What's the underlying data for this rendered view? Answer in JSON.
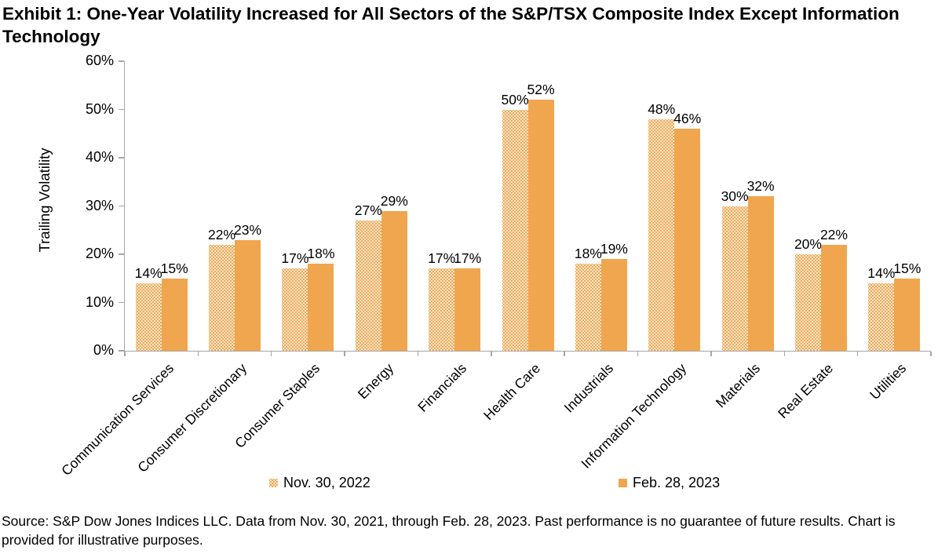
{
  "title": "Exhibit 1: One-Year Volatility Increased for All Sectors of the S&P/TSX Composite Index Except Information Technology",
  "source": "Source: S&P Dow Jones Indices LLC. Data from Nov. 30, 2021, through Feb. 28, 2023. Past performance is no guarantee of future results. Chart is provided for illustrative purposes.",
  "colors": {
    "bar_orange": "#F0A64F",
    "axis_gray": "#A6A6A6",
    "text_black": "#000000"
  },
  "chart_data": {
    "type": "bar",
    "title": "Exhibit 1: One-Year Volatility Increased for All Sectors of the S&P/TSX Composite Index Except Information Technology",
    "xlabel": "",
    "ylabel": "Trailing Volatility",
    "ylim": [
      0,
      60
    ],
    "ytick_step": 10,
    "ytick_labels": [
      "0%",
      "10%",
      "20%",
      "30%",
      "40%",
      "50%",
      "60%"
    ],
    "grid": false,
    "data_labels": true,
    "data_label_format": "percent",
    "legend_position": "bottom",
    "categories": [
      "Communication Services",
      "Consumer Discretionary",
      "Consumer Staples",
      "Energy",
      "Financials",
      "Health Care",
      "Industrials",
      "Information Technology",
      "Materials",
      "Real Estate",
      "Utilities"
    ],
    "series": [
      {
        "name": "Nov. 30, 2022",
        "style": "dotted",
        "values": [
          14,
          22,
          17,
          27,
          17,
          50,
          18,
          48,
          30,
          20,
          14
        ]
      },
      {
        "name": "Feb. 28, 2023",
        "style": "solid",
        "values": [
          15,
          23,
          18,
          29,
          17,
          52,
          19,
          46,
          32,
          22,
          15
        ]
      }
    ]
  }
}
